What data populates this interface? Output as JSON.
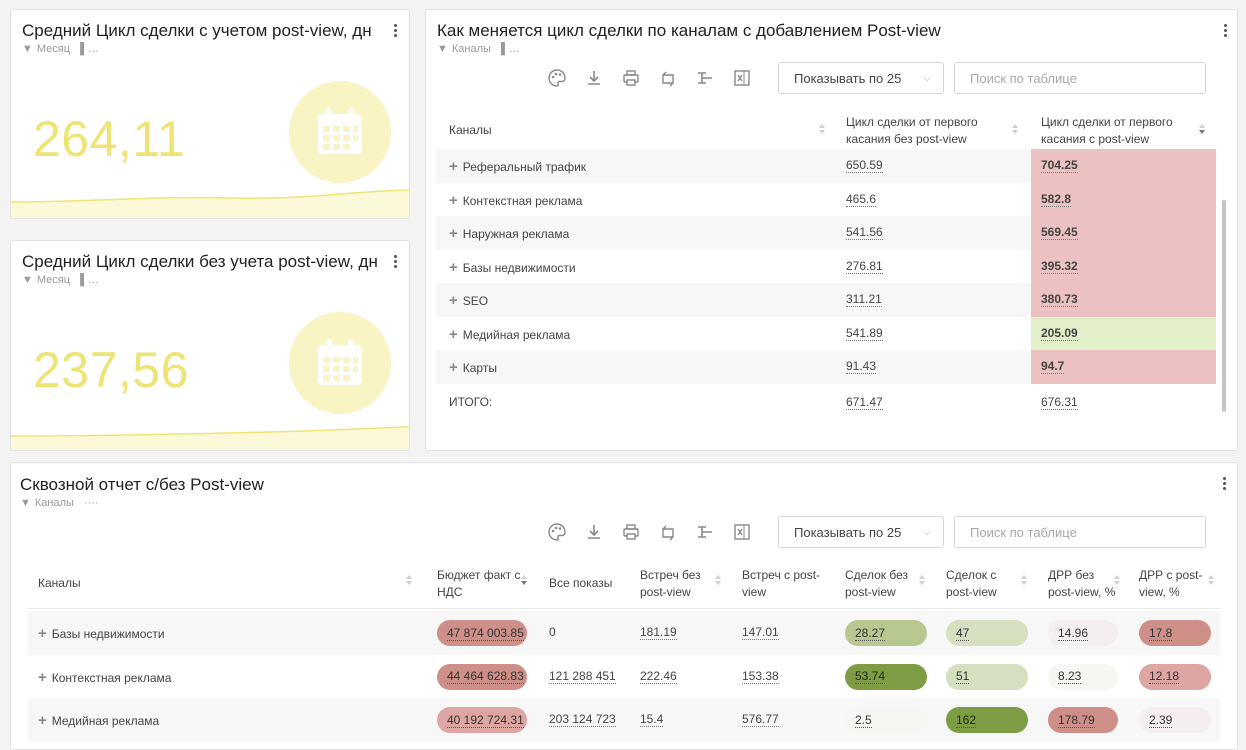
{
  "colors": {
    "kpi_value": "#eee375",
    "kpi_circle": "#f8f4c4",
    "kpi_icon": "#ffffff",
    "red_cell": "#ecc1c1",
    "green_cell": "#e3efc9",
    "pill_dark_red": "#cf8f89",
    "pill_mid_red": "#dda6a2",
    "pill_light_red": "#edd0cf",
    "pill_faint": "#f4efee",
    "pill_olive": "#b7c890",
    "pill_olive_dark": "#7e9c44",
    "pill_olive_light": "#d6e0c1",
    "pill_white": "#f6f7f2"
  },
  "kpi1": {
    "title": "Средний Цикл сделки с учетом post-view, дн",
    "filter": "Месяц",
    "value": "264,11",
    "icon": "calendar-icon"
  },
  "kpi2": {
    "title": "Средний Цикл сделки без учета post-view, дн",
    "filter": "Месяц",
    "value": "237,56",
    "icon": "calendar-icon"
  },
  "cycle_table": {
    "title": "Как меняется цикл сделки по каналам с добавлением Post-view",
    "filter": "Каналы",
    "page_size_label": "Показывать по 25",
    "search_placeholder": "Поиск по таблице",
    "headers": [
      "Каналы",
      "Цикл сделки от первого касания без post-view",
      "Цикл сделки от первого касания с post-view"
    ],
    "rows": [
      {
        "channel": "Реферальный трафик",
        "without": "650.59",
        "with": "704.25",
        "tone": "red"
      },
      {
        "channel": "Контекстная реклама",
        "without": "465.6",
        "with": "582.8",
        "tone": "red"
      },
      {
        "channel": "Наружная реклама",
        "without": "541.56",
        "with": "569.45",
        "tone": "red"
      },
      {
        "channel": "Базы недвижимости",
        "without": "276.81",
        "with": "395.32",
        "tone": "red"
      },
      {
        "channel": "SEO",
        "without": "311.21",
        "with": "380.73",
        "tone": "red"
      },
      {
        "channel": "Медийная реклама",
        "without": "541.89",
        "with": "205.09",
        "tone": "green"
      },
      {
        "channel": "Карты",
        "without": "91.43",
        "with": "94.7",
        "tone": "red"
      }
    ],
    "total": {
      "label": "ИТОГО:",
      "without": "671.47",
      "with": "676.31"
    }
  },
  "e2e_table": {
    "title": "Сквозной отчет с/без Post-view",
    "filter": "Каналы",
    "page_size_label": "Показывать по 25",
    "search_placeholder": "Поиск по таблице",
    "headers": [
      "Каналы",
      "Бюджет факт с НДС",
      "Все показы",
      "Встреч без post-view",
      "Встреч с post-view",
      "Сделок без post-view",
      "Сделок с post-view",
      "ДРР без post-view, %",
      "ДРР с post-view, %"
    ],
    "rows": [
      {
        "channel": "Базы недвижимости",
        "budget": "47 874 003.85",
        "shows": "0",
        "meet_wo": "181.19",
        "meet_w": "147.01",
        "deals_wo": "28.27",
        "deals_w": "47",
        "drr_wo": "14.96",
        "drr_w": "17.8",
        "c_budget": "pill_dark_red",
        "c_deals_wo": "pill_olive",
        "c_deals_w": "pill_olive_light",
        "c_drr_wo": "pill_faint",
        "c_drr_w": "pill_dark_red"
      },
      {
        "channel": "Контекстная реклама",
        "budget": "44 464 628.83",
        "shows": "121 288 451",
        "meet_wo": "222.46",
        "meet_w": "153.38",
        "deals_wo": "53.74",
        "deals_w": "51",
        "drr_wo": "8.23",
        "drr_w": "12.18",
        "c_budget": "pill_dark_red",
        "c_deals_wo": "pill_olive_dark",
        "c_deals_w": "pill_olive_light",
        "c_drr_wo": "pill_white",
        "c_drr_w": "pill_mid_red"
      },
      {
        "channel": "Медийная реклама",
        "budget": "40 192 724.31",
        "shows": "203 124 723",
        "meet_wo": "15.4",
        "meet_w": "576.77",
        "deals_wo": "2.5",
        "deals_w": "162",
        "drr_wo": "178.79",
        "drr_w": "2.39",
        "c_budget": "pill_mid_red",
        "c_deals_wo": "pill_white",
        "c_deals_w": "pill_olive_dark",
        "c_drr_wo": "pill_dark_red",
        "c_drr_w": "pill_faint"
      }
    ]
  }
}
